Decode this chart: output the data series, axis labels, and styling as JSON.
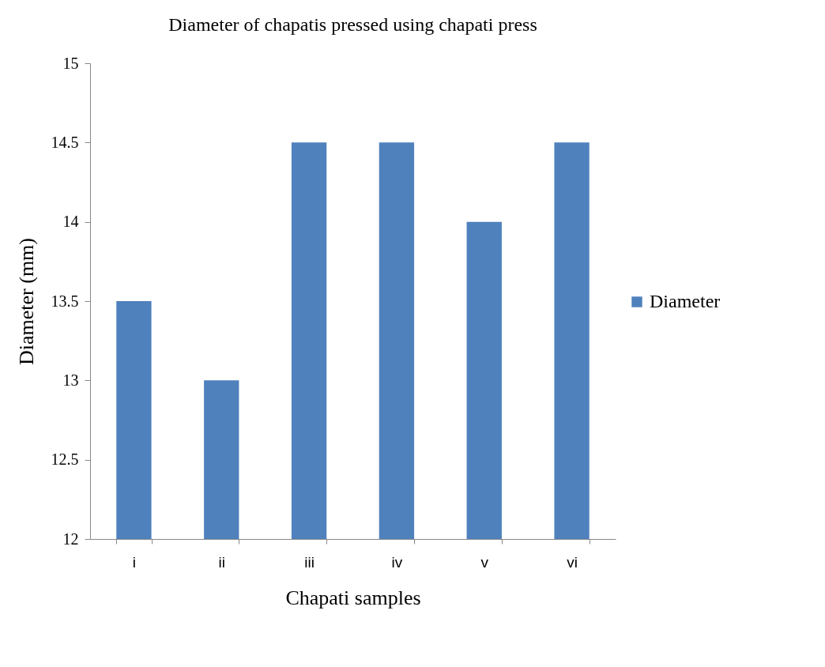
{
  "chart_data": {
    "type": "bar",
    "title": "Diameter of chapatis pressed using chapati press",
    "xlabel": "Chapati samples",
    "ylabel": "Diameter (mm)",
    "categories": [
      "i",
      "ii",
      "iii",
      "iv",
      "v",
      "vi"
    ],
    "series": [
      {
        "name": "Diameter",
        "color": "#4f81bd",
        "values": [
          13.5,
          13,
          14.5,
          14.5,
          14,
          14.5
        ]
      }
    ],
    "ylim": [
      12,
      15
    ],
    "yticks": [
      12,
      12.5,
      13,
      13.5,
      14,
      14.5,
      15
    ],
    "grid": false,
    "legend": "right"
  }
}
